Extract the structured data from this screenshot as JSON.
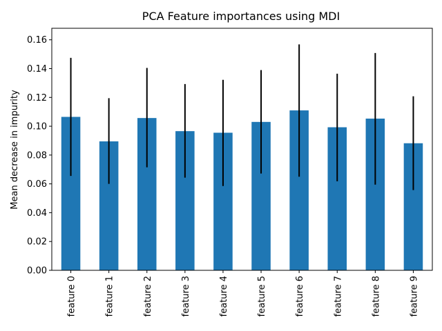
{
  "chart_data": {
    "type": "bar",
    "title": "PCA Feature importances using MDI",
    "xlabel": "",
    "ylabel": "Mean decrease in impurity",
    "categories": [
      "feature 0",
      "feature 1",
      "feature 2",
      "feature 3",
      "feature 4",
      "feature 5",
      "feature 6",
      "feature 7",
      "feature 8",
      "feature 9"
    ],
    "values": [
      0.1065,
      0.0895,
      0.1057,
      0.0966,
      0.0955,
      0.103,
      0.111,
      0.0993,
      0.1053,
      0.0882
    ],
    "error_low": [
      0.0655,
      0.06,
      0.0715,
      0.0643,
      0.0585,
      0.0672,
      0.065,
      0.0618,
      0.0595,
      0.0557
    ],
    "error_high": [
      0.1475,
      0.1195,
      0.1405,
      0.1293,
      0.1322,
      0.139,
      0.1568,
      0.1365,
      0.1508,
      0.1208
    ],
    "ylim": [
      0,
      0.168
    ],
    "yticks": [
      0.0,
      0.02,
      0.04,
      0.06,
      0.08,
      0.1,
      0.12,
      0.14,
      0.16
    ],
    "ytick_labels": [
      "0.00",
      "0.02",
      "0.04",
      "0.06",
      "0.08",
      "0.10",
      "0.12",
      "0.14",
      "0.16"
    ],
    "bar_color": "#1f77b4",
    "error_color": "#000000",
    "grid": false,
    "legend": "none"
  }
}
